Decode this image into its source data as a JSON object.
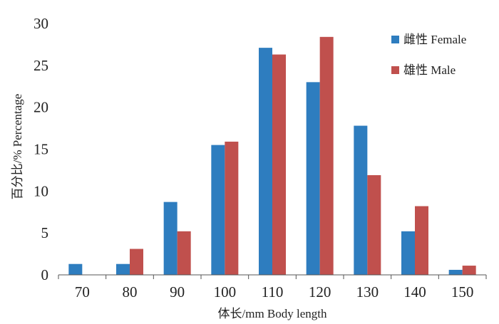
{
  "chart_data": {
    "type": "bar",
    "xlabel": "体长/mm  Body length",
    "ylabel": "百分比/% Percentage",
    "categories": [
      "70",
      "80",
      "90",
      "100",
      "110",
      "120",
      "130",
      "140",
      "150"
    ],
    "series": [
      {
        "name": "雌性 Female",
        "color": "#2e7dbf",
        "values": [
          1.3,
          1.3,
          8.7,
          15.5,
          27.1,
          23.0,
          17.8,
          5.2,
          0.6
        ]
      },
      {
        "name": "雄性 Male",
        "color": "#c0504d",
        "values": [
          0,
          3.1,
          5.2,
          15.9,
          26.3,
          28.4,
          11.9,
          8.2,
          1.1
        ]
      }
    ],
    "ylim": [
      0,
      30
    ],
    "yticks": [
      0,
      5,
      10,
      15,
      20,
      25,
      30
    ],
    "legend_position": "top-right",
    "grid": false
  }
}
